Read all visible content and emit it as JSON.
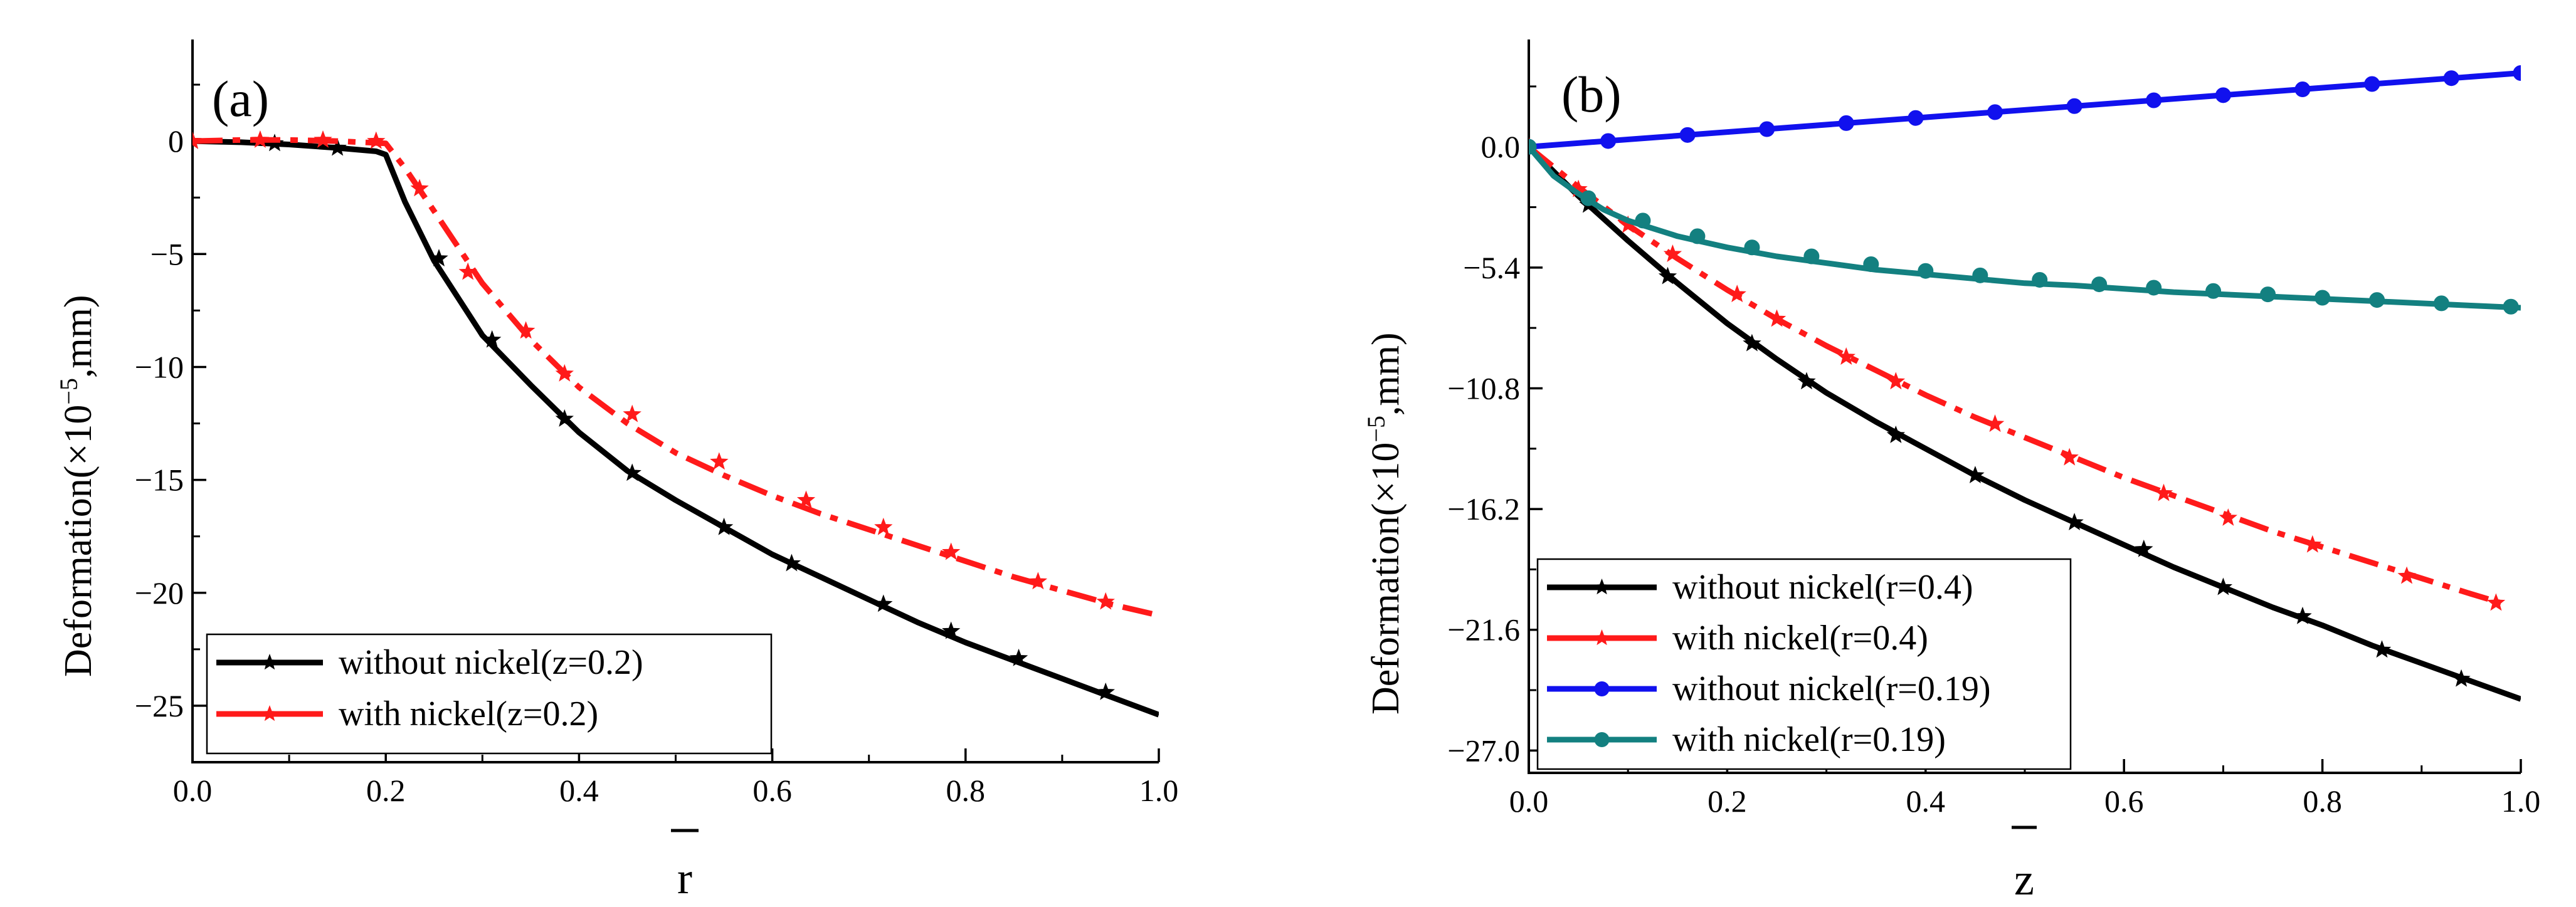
{
  "chart_data": [
    {
      "panel": "(a)",
      "type": "line",
      "xlabel": "r",
      "ylabel": "Deformation(×10^-5,mm)",
      "ylabel_base": "Deformation(×10",
      "ylabel_exp": "−5",
      "ylabel_tail": ",mm)",
      "xlim": [
        0,
        1
      ],
      "ylim": [
        -27.5,
        4.5
      ],
      "xticks": [
        0,
        0.2,
        0.4,
        0.6,
        0.8,
        1.0
      ],
      "xtick_labels": [
        "0.0",
        "0.2",
        "0.4",
        "0.6",
        "0.8",
        "1.0"
      ],
      "yticks": [
        0,
        -5,
        -10,
        -15,
        -20,
        -25
      ],
      "ytick_labels": [
        "0",
        "−5",
        "−10",
        "−15",
        "−20",
        "−25"
      ],
      "legend_position": "bottom-left",
      "series": [
        {
          "name": "without nickel(z=0.2)",
          "color": "#000000",
          "style": "solid",
          "marker": "star",
          "x": [
            0,
            0.05,
            0.1,
            0.15,
            0.19,
            0.2,
            0.22,
            0.25,
            0.3,
            0.35,
            0.4,
            0.45,
            0.5,
            0.55,
            0.6,
            0.65,
            0.7,
            0.75,
            0.8,
            0.85,
            0.9,
            0.95,
            1.0
          ],
          "y": [
            0,
            -0.05,
            -0.15,
            -0.3,
            -0.45,
            -0.6,
            -2.7,
            -5.3,
            -8.6,
            -10.8,
            -12.9,
            -14.6,
            -15.9,
            -17.1,
            -18.3,
            -19.3,
            -20.3,
            -21.3,
            -22.2,
            -23.0,
            -23.8,
            -24.6,
            -25.4
          ],
          "marker_x": [
            0,
            0.085,
            0.15,
            0.255,
            0.31,
            0.385,
            0.455,
            0.55,
            0.62,
            0.715,
            0.785,
            0.855,
            0.945
          ],
          "marker_y": [
            0,
            -0.1,
            -0.3,
            -5.2,
            -8.8,
            -12.3,
            -14.7,
            -17.1,
            -18.7,
            -20.5,
            -21.7,
            -22.9,
            -24.4
          ]
        },
        {
          "name": "with nickel(z=0.2)",
          "color": "#ff1a1a",
          "style": "dashdot",
          "marker": "star",
          "x": [
            0,
            0.05,
            0.1,
            0.15,
            0.2,
            0.22,
            0.25,
            0.3,
            0.35,
            0.4,
            0.45,
            0.5,
            0.55,
            0.6,
            0.65,
            0.7,
            0.75,
            0.8,
            0.85,
            0.9,
            0.95,
            1.0
          ],
          "y": [
            0,
            0.05,
            0.05,
            0.0,
            -0.1,
            -1.2,
            -3.1,
            -6.3,
            -8.8,
            -10.9,
            -12.5,
            -13.8,
            -14.8,
            -15.7,
            -16.5,
            -17.2,
            -17.9,
            -18.6,
            -19.3,
            -19.9,
            -20.5,
            -21.0
          ],
          "marker_x": [
            0,
            0.07,
            0.135,
            0.19,
            0.235,
            0.285,
            0.345,
            0.385,
            0.455,
            0.545,
            0.635,
            0.715,
            0.785,
            0.875,
            0.945
          ],
          "marker_y": [
            0,
            0.05,
            0.05,
            0.0,
            -2.1,
            -5.8,
            -8.4,
            -10.3,
            -12.1,
            -14.2,
            -15.9,
            -17.1,
            -18.2,
            -19.5,
            -20.4
          ]
        }
      ]
    },
    {
      "panel": "(b)",
      "type": "line",
      "xlabel": "z",
      "ylabel": "Deformation(×10^-5,mm)",
      "ylabel_base": "Deformation(×10",
      "ylabel_exp": "−5",
      "ylabel_tail": ",mm)",
      "xlim": [
        0,
        1
      ],
      "ylim": [
        -28.0,
        4.8
      ],
      "xticks": [
        0,
        0.2,
        0.4,
        0.6,
        0.8,
        1.0
      ],
      "xtick_labels": [
        "0.0",
        "0.2",
        "0.4",
        "0.6",
        "0.8",
        "1.0"
      ],
      "yticks": [
        0,
        -5.4,
        -10.8,
        -16.2,
        -21.6,
        -27.0
      ],
      "ytick_labels": [
        "0.0",
        "−5.4",
        "−10.8",
        "−16.2",
        "−21.6",
        "−27.0"
      ],
      "legend_position": "bottom-left",
      "series": [
        {
          "name": "without nickel(r=0.4)",
          "color": "#000000",
          "style": "solid",
          "marker": "star",
          "x": [
            0,
            0.05,
            0.1,
            0.15,
            0.2,
            0.25,
            0.3,
            0.35,
            0.4,
            0.45,
            0.5,
            0.55,
            0.6,
            0.65,
            0.7,
            0.75,
            0.8,
            0.85,
            0.9,
            0.95,
            1.0
          ],
          "y": [
            0,
            -2.2,
            -4.2,
            -6.1,
            -7.9,
            -9.5,
            -11.0,
            -12.3,
            -13.5,
            -14.7,
            -15.8,
            -16.8,
            -17.8,
            -18.8,
            -19.7,
            -20.6,
            -21.4,
            -22.3,
            -23.1,
            -23.9,
            -24.7
          ],
          "marker_x": [
            0,
            0.06,
            0.14,
            0.225,
            0.28,
            0.37,
            0.45,
            0.55,
            0.62,
            0.7,
            0.78,
            0.86,
            0.94
          ],
          "marker_y": [
            0,
            -2.6,
            -5.8,
            -8.8,
            -10.5,
            -12.9,
            -14.7,
            -16.8,
            -18.0,
            -19.7,
            -21.0,
            -22.5,
            -23.8
          ]
        },
        {
          "name": "with nickel(r=0.4)",
          "color": "#ff1a1a",
          "style": "dashdot",
          "marker": "star",
          "x": [
            0,
            0.05,
            0.1,
            0.15,
            0.2,
            0.25,
            0.3,
            0.35,
            0.4,
            0.45,
            0.5,
            0.55,
            0.6,
            0.65,
            0.7,
            0.75,
            0.8,
            0.85,
            0.9,
            0.95,
            0.98
          ],
          "y": [
            0,
            -1.8,
            -3.5,
            -5.0,
            -6.4,
            -7.7,
            -8.9,
            -10.0,
            -11.1,
            -12.1,
            -13.0,
            -13.9,
            -14.8,
            -15.6,
            -16.4,
            -17.2,
            -17.9,
            -18.6,
            -19.3,
            -20.0,
            -20.4
          ],
          "marker_x": [
            0,
            0.05,
            0.1,
            0.145,
            0.21,
            0.25,
            0.32,
            0.37,
            0.47,
            0.545,
            0.64,
            0.705,
            0.79,
            0.885,
            0.975
          ],
          "marker_y": [
            0,
            -1.9,
            -3.5,
            -4.8,
            -6.6,
            -7.7,
            -9.4,
            -10.5,
            -12.4,
            -13.9,
            -15.5,
            -16.6,
            -17.8,
            -19.2,
            -20.4
          ]
        },
        {
          "name": "without nickel(r=0.19)",
          "color": "#1111ee",
          "style": "solid",
          "marker": "circle",
          "x": [
            0,
            1.0
          ],
          "y": [
            0,
            3.3
          ],
          "marker_x": [
            0,
            0.08,
            0.16,
            0.24,
            0.32,
            0.39,
            0.47,
            0.55,
            0.63,
            0.7,
            0.78,
            0.85,
            0.93,
            1.0
          ],
          "marker_y": [
            0,
            0.26,
            0.53,
            0.79,
            1.06,
            1.29,
            1.55,
            1.82,
            2.08,
            2.31,
            2.57,
            2.81,
            3.07,
            3.3
          ]
        },
        {
          "name": "with nickel(r=0.19)",
          "color": "#138080",
          "style": "solid",
          "marker": "circle",
          "x": [
            0,
            0.025,
            0.05,
            0.075,
            0.1,
            0.15,
            0.2,
            0.25,
            0.3,
            0.35,
            0.4,
            0.45,
            0.5,
            0.55,
            0.6,
            0.65,
            0.7,
            0.75,
            0.8,
            0.85,
            0.9,
            0.95,
            1.0
          ],
          "y": [
            0,
            -1.3,
            -2.1,
            -2.8,
            -3.3,
            -4.0,
            -4.5,
            -4.9,
            -5.2,
            -5.5,
            -5.7,
            -5.9,
            -6.1,
            -6.2,
            -6.35,
            -6.5,
            -6.6,
            -6.7,
            -6.8,
            -6.9,
            -7.0,
            -7.1,
            -7.2
          ],
          "marker_x": [
            0,
            0.06,
            0.115,
            0.17,
            0.225,
            0.285,
            0.345,
            0.4,
            0.455,
            0.515,
            0.575,
            0.63,
            0.69,
            0.745,
            0.8,
            0.855,
            0.92,
            0.99
          ],
          "marker_y": [
            0,
            -2.3,
            -3.3,
            -4.0,
            -4.5,
            -4.9,
            -5.25,
            -5.55,
            -5.75,
            -5.95,
            -6.15,
            -6.3,
            -6.45,
            -6.6,
            -6.75,
            -6.85,
            -7.0,
            -7.15
          ]
        }
      ]
    }
  ]
}
